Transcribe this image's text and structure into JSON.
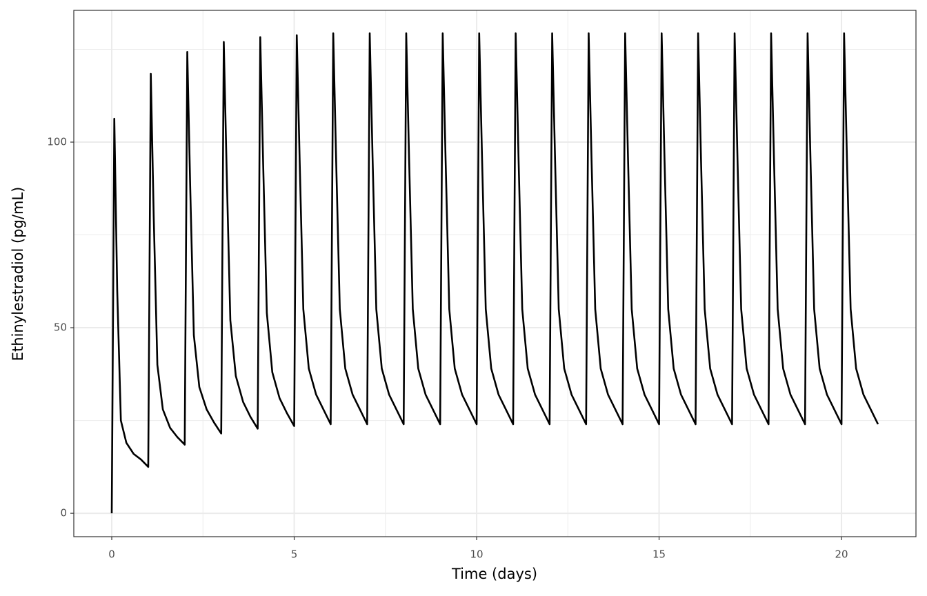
{
  "chart_data": {
    "type": "line",
    "x_label": "Time (days)",
    "y_label": "Ethinylestradiol (pg/mL)",
    "xlim": [
      -1.04,
      22.04
    ],
    "ylim": [
      -6.3,
      135.5
    ],
    "xticks": [
      0,
      5,
      10,
      15,
      20
    ],
    "yticks": [
      0,
      50,
      100
    ],
    "minor_xticks": [
      2.5,
      7.5,
      12.5,
      17.5
    ],
    "minor_yticks": [
      25,
      75,
      125
    ],
    "grid": true,
    "color": "#000000",
    "x": [
      0,
      0.07,
      0.15,
      0.25,
      0.4,
      0.6,
      0.8,
      1,
      1.07,
      1.15,
      1.25,
      1.4,
      1.6,
      1.8,
      2,
      2.07,
      2.15,
      2.25,
      2.4,
      2.6,
      2.8,
      3,
      3.07,
      3.15,
      3.25,
      3.4,
      3.6,
      3.8,
      4,
      4.07,
      4.15,
      4.25,
      4.4,
      4.6,
      4.8,
      5,
      5.07,
      5.15,
      5.25,
      5.4,
      5.6,
      5.8,
      6,
      6.07,
      6.15,
      6.25,
      6.4,
      6.6,
      6.8,
      7,
      7.07,
      7.15,
      7.25,
      7.4,
      7.6,
      7.8,
      8,
      8.07,
      8.15,
      8.25,
      8.4,
      8.6,
      8.8,
      9,
      9.07,
      9.15,
      9.25,
      9.4,
      9.6,
      9.8,
      10,
      10.07,
      10.15,
      10.25,
      10.4,
      10.6,
      10.8,
      11,
      11.07,
      11.15,
      11.25,
      11.4,
      11.6,
      11.8,
      12,
      12.07,
      12.15,
      12.25,
      12.4,
      12.6,
      12.8,
      13,
      13.07,
      13.15,
      13.25,
      13.4,
      13.6,
      13.8,
      14,
      14.07,
      14.15,
      14.25,
      14.4,
      14.6,
      14.8,
      15,
      15.07,
      15.15,
      15.25,
      15.4,
      15.6,
      15.8,
      16,
      16.07,
      16.15,
      16.25,
      16.4,
      16.6,
      16.8,
      17,
      17.07,
      17.15,
      17.25,
      17.4,
      17.6,
      17.8,
      18,
      18.07,
      18.15,
      18.25,
      18.4,
      18.6,
      18.8,
      19,
      19.07,
      19.15,
      19.25,
      19.4,
      19.6,
      19.8,
      20,
      20.07,
      20.15,
      20.25,
      20.4,
      20.6,
      20.8,
      21
    ],
    "values": [
      0,
      106.3,
      60,
      25,
      19,
      16,
      14.5,
      12.5,
      118.4,
      80,
      40,
      28,
      23,
      20.5,
      18.5,
      124.3,
      88,
      48,
      34,
      28,
      24.5,
      21.5,
      127,
      92,
      52,
      37,
      30,
      26,
      22.8,
      128.3,
      94,
      54,
      38,
      31,
      27,
      23.5,
      128.8,
      95,
      55,
      39,
      32,
      28,
      24,
      129.3,
      95,
      55,
      39,
      32,
      28,
      24,
      129.3,
      95,
      55,
      39,
      32,
      28,
      24,
      129.3,
      95,
      55,
      39,
      32,
      28,
      24,
      129.3,
      95,
      55,
      39,
      32,
      28,
      24,
      129.3,
      95,
      55,
      39,
      32,
      28,
      24,
      129.3,
      95,
      55,
      39,
      32,
      28,
      24,
      129.3,
      95,
      55,
      39,
      32,
      28,
      24,
      129.3,
      95,
      55,
      39,
      32,
      28,
      24,
      129.3,
      95,
      55,
      39,
      32,
      28,
      24,
      129.3,
      95,
      55,
      39,
      32,
      28,
      24,
      129.3,
      95,
      55,
      39,
      32,
      28,
      24,
      129.3,
      95,
      55,
      39,
      32,
      28,
      24,
      129.3,
      95,
      55,
      39,
      32,
      28,
      24,
      129.3,
      95,
      55,
      39,
      32,
      28,
      24,
      129.3,
      95,
      55,
      39,
      32,
      28,
      24
    ]
  }
}
